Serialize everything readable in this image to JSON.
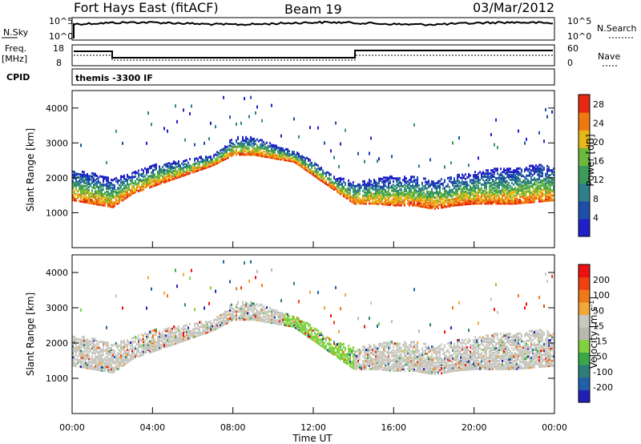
{
  "header": {
    "station": "Fort Hays East (fitACF)",
    "beam": "Beam 19",
    "date": "03/Mar/2012"
  },
  "left_labels": {
    "nsky": "N.Sky",
    "freq": "Freq.",
    "mhz": "[MHz]",
    "cpid": "CPID"
  },
  "right_labels": {
    "nsearch": "N.Search",
    "nave": "Nave"
  },
  "cpid_text": "themis -3300 IF",
  "nsky_axis": {
    "top": "10^5",
    "bottom": "10^0"
  },
  "nsearch_axis": {
    "top": "10^5",
    "bottom": "10^0"
  },
  "freq_axis": {
    "top": "18",
    "bottom": "8"
  },
  "nave_axis": {
    "top": "60",
    "bottom": "0"
  },
  "colors": {
    "power_scale": [
      "#2020c8",
      "#1e4fa8",
      "#2e7f8a",
      "#3c9a5a",
      "#6cb83a",
      "#e8b818",
      "#f07810",
      "#e82810"
    ],
    "velocity_scale": [
      "#ee1010",
      "#ee4010",
      "#f07818",
      "#f0a838",
      "#c8c8c0",
      "#b8b8b0",
      "#80d040",
      "#38a848",
      "#2e7e7a",
      "#2060a8",
      "#2020b8"
    ]
  },
  "chart_data": [
    {
      "type": "heatmap",
      "name": "power",
      "ylabel": "Slant Range [km]",
      "xlabel": "",
      "ylim": [
        0,
        4500
      ],
      "yticks": [
        "1000",
        "2000",
        "3000",
        "4000"
      ],
      "xticks": [
        "00:00",
        "04:00",
        "08:00",
        "12:00",
        "16:00",
        "20:00",
        "00:00"
      ],
      "xlim_hours": [
        0,
        24
      ],
      "colorbar_label": "Power [dB]",
      "colorbar_ticks": [
        "4",
        "8",
        "12",
        "16",
        "20",
        "24",
        "28"
      ],
      "colorbar_range": [
        0,
        30
      ],
      "scatter_lower_km": [
        [
          0,
          1400
        ],
        [
          1,
          1300
        ],
        [
          2,
          1200
        ],
        [
          3,
          1600
        ],
        [
          4,
          1800
        ],
        [
          5,
          2000
        ],
        [
          6,
          2200
        ],
        [
          7,
          2400
        ],
        [
          8,
          2700
        ],
        [
          9,
          2700
        ],
        [
          10,
          2600
        ],
        [
          11,
          2500
        ],
        [
          12,
          2100
        ],
        [
          13,
          1700
        ],
        [
          14,
          1300
        ],
        [
          15,
          1300
        ],
        [
          16,
          1250
        ],
        [
          17,
          1250
        ],
        [
          18,
          1150
        ],
        [
          19,
          1250
        ],
        [
          20,
          1300
        ],
        [
          21,
          1300
        ],
        [
          22,
          1300
        ],
        [
          23,
          1350
        ],
        [
          24,
          1400
        ]
      ],
      "scatter_upper_km": [
        [
          0,
          2300
        ],
        [
          1,
          2200
        ],
        [
          2,
          2000
        ],
        [
          3,
          2200
        ],
        [
          4,
          2400
        ],
        [
          5,
          2500
        ],
        [
          6,
          2600
        ],
        [
          7,
          2700
        ],
        [
          8,
          3200
        ],
        [
          9,
          3200
        ],
        [
          10,
          3000
        ],
        [
          11,
          2800
        ],
        [
          12,
          2500
        ],
        [
          13,
          2100
        ],
        [
          14,
          1900
        ],
        [
          15,
          2000
        ],
        [
          16,
          2100
        ],
        [
          17,
          2100
        ],
        [
          18,
          2000
        ],
        [
          19,
          2100
        ],
        [
          20,
          2200
        ],
        [
          21,
          2300
        ],
        [
          22,
          2300
        ],
        [
          23,
          2400
        ],
        [
          24,
          2400
        ]
      ]
    },
    {
      "type": "heatmap",
      "name": "velocity",
      "ylabel": "Slant Range [km]",
      "xlabel": "Time UT",
      "ylim": [
        0,
        4500
      ],
      "yticks": [
        "1000",
        "2000",
        "3000",
        "4000"
      ],
      "xticks": [
        "00:00",
        "04:00",
        "08:00",
        "12:00",
        "16:00",
        "20:00",
        "00:00"
      ],
      "xlim_hours": [
        0,
        24
      ],
      "colorbar_label": "Velocity [m s^-1]",
      "colorbar_ticks": [
        "200",
        "100",
        "50",
        "15",
        "-15",
        "-50",
        "-100",
        "-200"
      ]
    }
  ]
}
